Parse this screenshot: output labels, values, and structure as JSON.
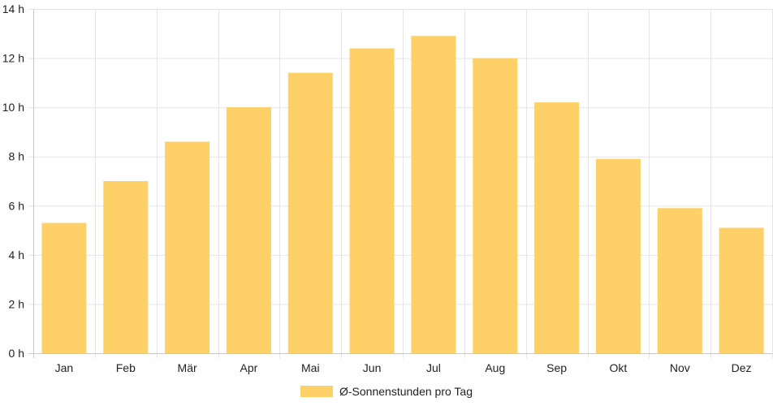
{
  "chart_data": {
    "type": "bar",
    "categories": [
      "Jan",
      "Feb",
      "Mär",
      "Apr",
      "Mai",
      "Jun",
      "Jul",
      "Aug",
      "Sep",
      "Okt",
      "Nov",
      "Dez"
    ],
    "series": [
      {
        "name": "Ø-Sonnenstunden pro Tag",
        "values": [
          5.3,
          7.0,
          8.6,
          10.0,
          11.4,
          12.4,
          12.9,
          12.0,
          10.2,
          7.9,
          5.9,
          5.1
        ],
        "color": "#fdd068"
      }
    ],
    "ylim": [
      0,
      14
    ],
    "y_ticks": [
      0,
      2,
      4,
      6,
      8,
      10,
      12,
      14
    ],
    "y_tick_suffix": " h",
    "grid": true,
    "legend_position": "bottom",
    "colors": {
      "grid": "#e5e5e5",
      "axis": "#c8c8c8",
      "text": "#222222"
    }
  }
}
